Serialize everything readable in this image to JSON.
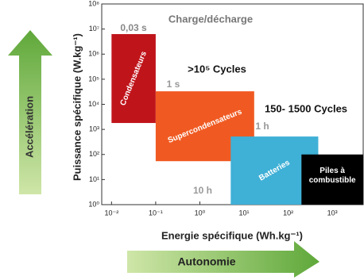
{
  "chart_data": {
    "type": "region",
    "x_label": "Energie spécifique (Wh.kg⁻¹)",
    "y_label": "Puissance spécifique (W.kg⁻¹)",
    "xscale": "log",
    "yscale": "log",
    "xlim": [
      0.006,
      5000
    ],
    "ylim": [
      1,
      100000000
    ],
    "xticks": [
      {
        "value": 0.01,
        "label": "10⁻²"
      },
      {
        "value": 0.1,
        "label": "10⁻¹"
      },
      {
        "value": 1,
        "label": "10⁰"
      },
      {
        "value": 10,
        "label": "10¹"
      },
      {
        "value": 100,
        "label": "10²"
      },
      {
        "value": 1000,
        "label": "10³"
      }
    ],
    "yticks": [
      {
        "value": 1,
        "label": "10⁰"
      },
      {
        "value": 10,
        "label": "10¹"
      },
      {
        "value": 100,
        "label": "10²"
      },
      {
        "value": 1000,
        "label": "10³"
      },
      {
        "value": 10000,
        "label": "10⁴"
      },
      {
        "value": 100000,
        "label": "10⁵"
      },
      {
        "value": 1000000,
        "label": "10⁶"
      },
      {
        "value": 10000000,
        "label": "10⁷"
      },
      {
        "value": 100000000,
        "label": "10⁸"
      }
    ],
    "series": [
      {
        "name": "Condensateurs",
        "color": "#c0141b",
        "x": [
          0.01,
          0.1
        ],
        "y": [
          1800,
          6300000
        ]
      },
      {
        "name": "Supercondensateurs",
        "color": "#f05a22",
        "x": [
          0.1,
          17
        ],
        "y": [
          54,
          33000
        ]
      },
      {
        "name": "Batteries",
        "color": "#3fb0d6",
        "x": [
          5,
          480
        ],
        "y": [
          1,
          520
        ]
      },
      {
        "name": "Piles à combustible",
        "color": "#000000",
        "x": [
          200,
          5000
        ],
        "y": [
          1,
          100
        ]
      }
    ],
    "annotations": [
      "Charge/décharge",
      "0,03 s",
      "1 s",
      "1 h",
      "10 h",
      ">10⁵ Cycles",
      "150- 1500 Cycles"
    ],
    "arrows": [
      "Accélération",
      "Autonomie"
    ]
  }
}
